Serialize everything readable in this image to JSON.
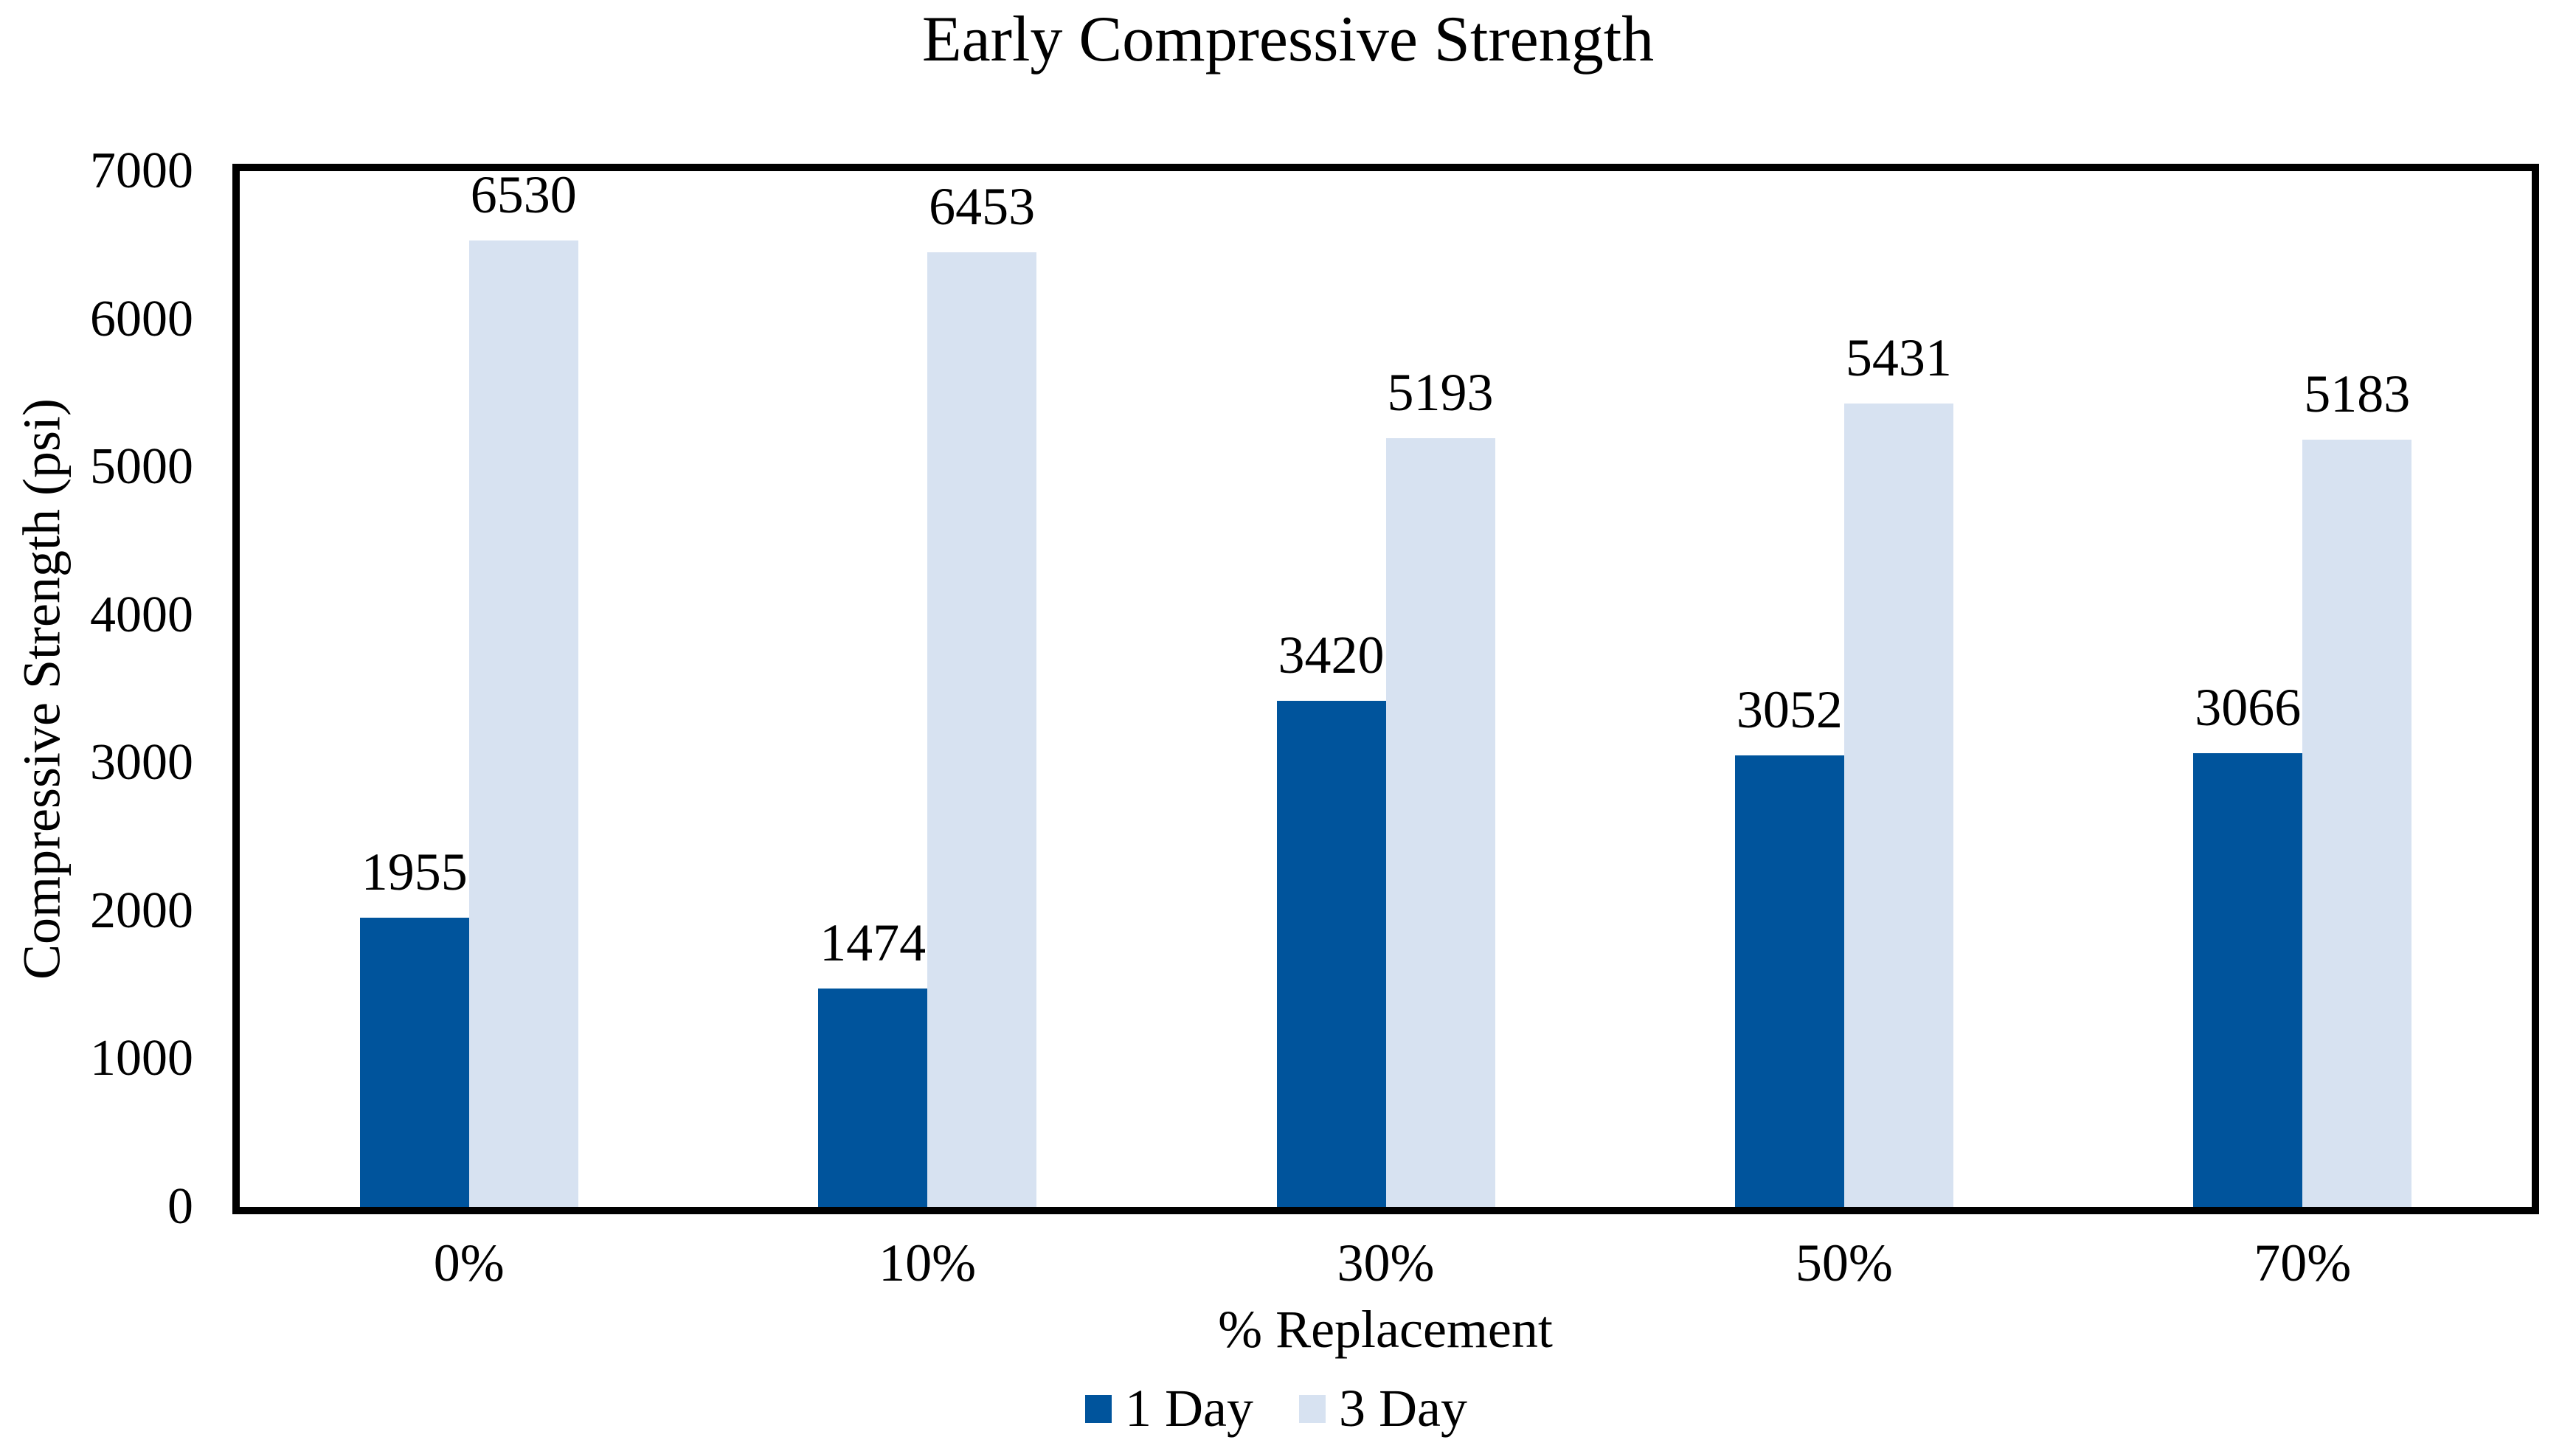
{
  "chart_data": {
    "type": "bar",
    "title": "Early Compressive Strength",
    "xlabel": "% Replacement",
    "ylabel": "Compressive Strength (psi)",
    "categories": [
      "0%",
      "10%",
      "30%",
      "50%",
      "70%"
    ],
    "series": [
      {
        "name": "1 Day",
        "color": "#00549c",
        "values": [
          1955,
          1474,
          3420,
          3052,
          3066
        ]
      },
      {
        "name": "3 Day",
        "color": "#d7e2f1",
        "values": [
          6530,
          6453,
          5193,
          5431,
          5183
        ]
      }
    ],
    "ylim": [
      0,
      7000
    ],
    "y_ticks": [
      0,
      1000,
      2000,
      3000,
      4000,
      5000,
      6000,
      7000
    ],
    "grid": false,
    "data_labels": true,
    "legend_position": "bottom",
    "axis_color": "#000000",
    "text_color": "#000000",
    "background": "#ffffff"
  }
}
